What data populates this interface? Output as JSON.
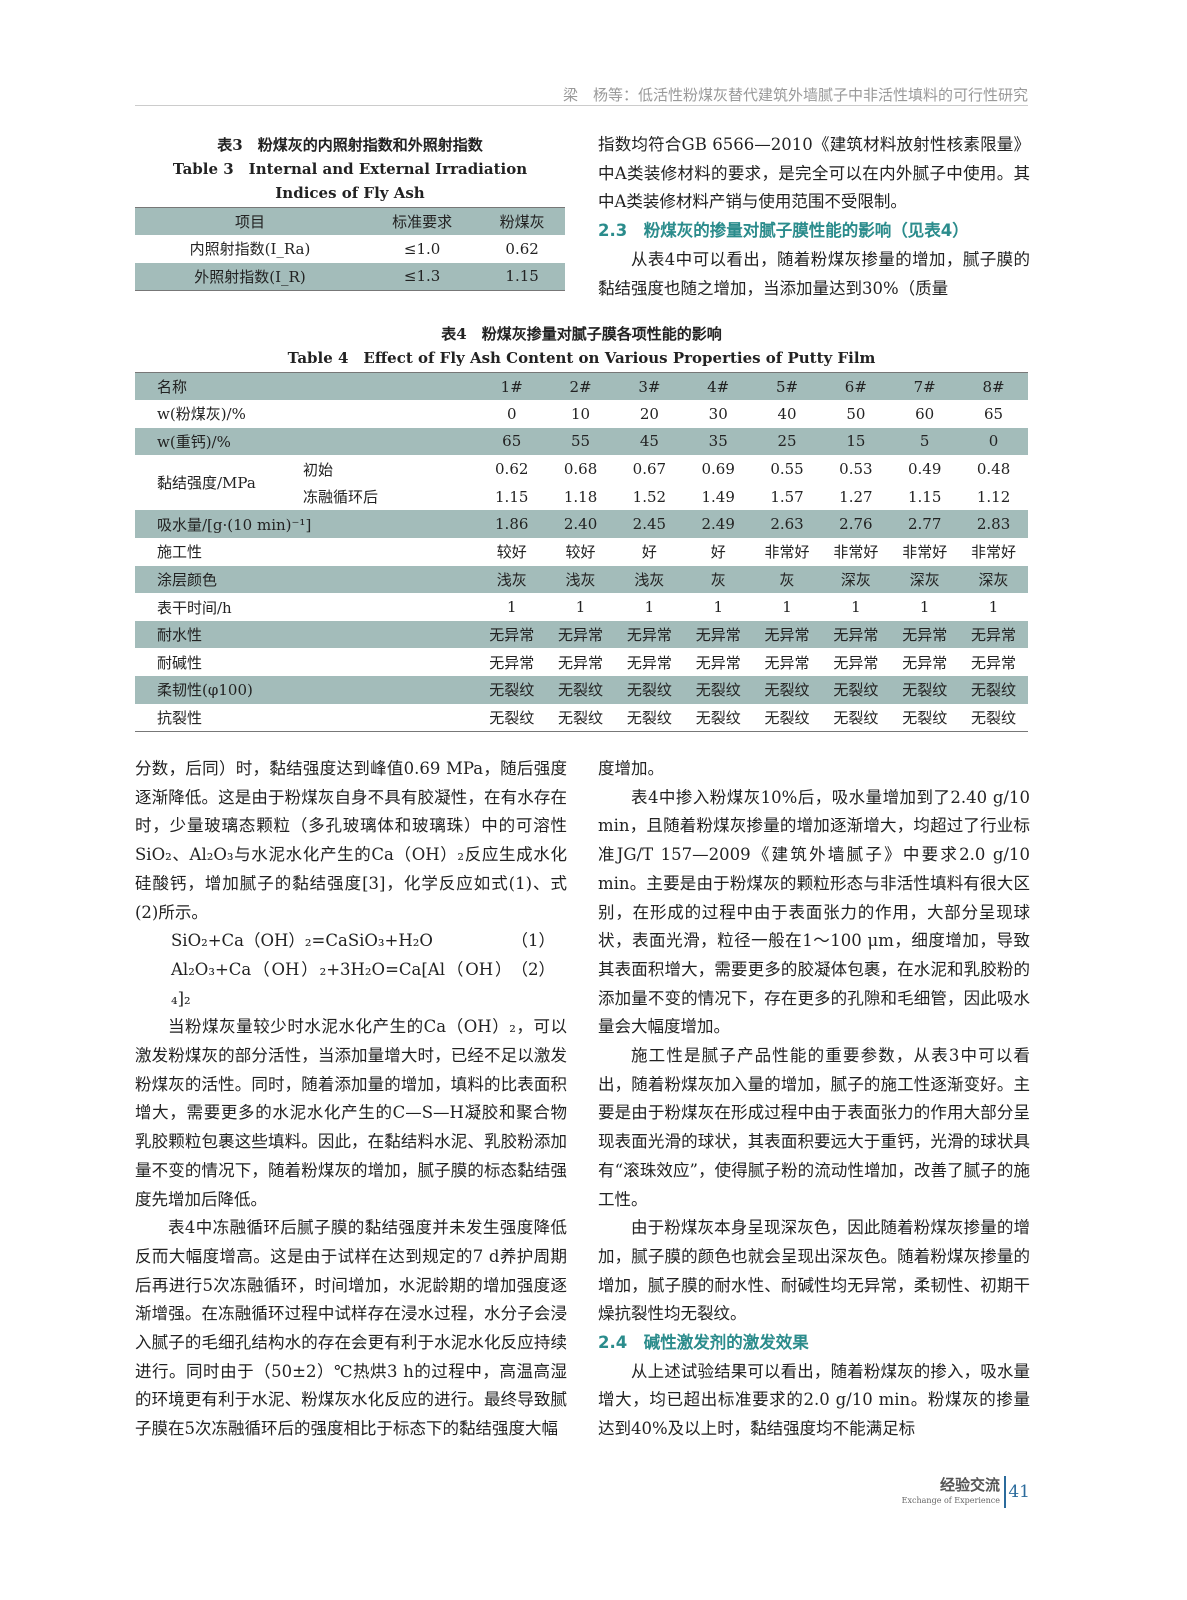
{
  "header": {
    "running_title": "梁　杨等：低活性粉煤灰替代建筑外墙腻子中非活性填料的可行性研究"
  },
  "table3": {
    "caption_cn": "表3　粉煤灰的内照射指数和外照射指数",
    "caption_en": "Table 3　Internal and External Irradiation Indices of Fly Ash",
    "headers": [
      "项目",
      "标准要求",
      "粉煤灰"
    ],
    "rows": [
      [
        "内照射指数(I_Ra)",
        "≤1.0",
        "0.62"
      ],
      [
        "外照射指数(I_R)",
        "≤1.3",
        "1.15"
      ]
    ]
  },
  "right_top": {
    "p1": "指数均符合GB 6566—2010《建筑材料放射性核素限量》中A类装修材料的要求，是完全可以在内外腻子中使用。其中A类装修材料产销与使用范围不受限制。",
    "h23": "2.3　粉煤灰的掺量对腻子膜性能的影响（见表4）",
    "p2": "从表4中可以看出，随着粉煤灰掺量的增加，腻子膜的黏结强度也随之增加，当添加量达到30%（质量"
  },
  "table4": {
    "caption_cn": "表4　粉煤灰掺量对腻子膜各项性能的影响",
    "caption_en": "Table 4　Effect of Fly Ash Content on Various Properties of Putty Film",
    "headers": [
      "名称",
      "1#",
      "2#",
      "3#",
      "4#",
      "5#",
      "6#",
      "7#",
      "8#"
    ],
    "rows": [
      {
        "label": "w(粉煤灰)/%",
        "values": [
          "0",
          "10",
          "20",
          "30",
          "40",
          "50",
          "60",
          "65"
        ]
      },
      {
        "label": "w(重钙)/%",
        "values": [
          "65",
          "55",
          "45",
          "35",
          "25",
          "15",
          "5",
          "0"
        ]
      },
      {
        "label": "黏结强度/MPa",
        "sub": "初始",
        "values": [
          "0.62",
          "0.68",
          "0.67",
          "0.69",
          "0.55",
          "0.53",
          "0.49",
          "0.48"
        ]
      },
      {
        "sub": "冻融循环后",
        "values": [
          "1.15",
          "1.18",
          "1.52",
          "1.49",
          "1.57",
          "1.27",
          "1.15",
          "1.12"
        ]
      },
      {
        "label": "吸水量/[g·(10 min)⁻¹]",
        "values": [
          "1.86",
          "2.40",
          "2.45",
          "2.49",
          "2.63",
          "2.76",
          "2.77",
          "2.83"
        ]
      },
      {
        "label": "施工性",
        "values": [
          "较好",
          "较好",
          "好",
          "好",
          "非常好",
          "非常好",
          "非常好",
          "非常好"
        ]
      },
      {
        "label": "涂层颜色",
        "values": [
          "浅灰",
          "浅灰",
          "浅灰",
          "灰",
          "灰",
          "深灰",
          "深灰",
          "深灰"
        ]
      },
      {
        "label": "表干时间/h",
        "values": [
          "1",
          "1",
          "1",
          "1",
          "1",
          "1",
          "1",
          "1"
        ]
      },
      {
        "label": "耐水性",
        "values": [
          "无异常",
          "无异常",
          "无异常",
          "无异常",
          "无异常",
          "无异常",
          "无异常",
          "无异常"
        ]
      },
      {
        "label": "耐碱性",
        "values": [
          "无异常",
          "无异常",
          "无异常",
          "无异常",
          "无异常",
          "无异常",
          "无异常",
          "无异常"
        ]
      },
      {
        "label": "柔韧性(φ100)",
        "values": [
          "无裂纹",
          "无裂纹",
          "无裂纹",
          "无裂纹",
          "无裂纹",
          "无裂纹",
          "无裂纹",
          "无裂纹"
        ]
      },
      {
        "label": "抗裂性",
        "values": [
          "无裂纹",
          "无裂纹",
          "无裂纹",
          "无裂纹",
          "无裂纹",
          "无裂纹",
          "无裂纹",
          "无裂纹"
        ]
      }
    ]
  },
  "left_body": {
    "p1": "分数，后同）时，黏结强度达到峰值0.69 MPa，随后强度逐渐降低。这是由于粉煤灰自身不具有胶凝性，在有水存在时，少量玻璃态颗粒（多孔玻璃体和玻璃珠）中的可溶性SiO₂、Al₂O₃与水泥水化产生的Ca（OH）₂反应生成水化硅酸钙，增加腻子的黏结强度[3]，化学反应如式(1)、式(2)所示。",
    "eq1": "SiO₂+Ca（OH）₂=CaSiO₃+H₂O",
    "eq1_no": "（1）",
    "eq2": "Al₂O₃+Ca（OH）₂+3H₂O=Ca[Al（OH）₄]₂",
    "eq2_no": "（2）",
    "p2": "当粉煤灰量较少时水泥水化产生的Ca（OH）₂，可以激发粉煤灰的部分活性，当添加量增大时，已经不足以激发粉煤灰的活性。同时，随着添加量的增加，填料的比表面积增大，需要更多的水泥水化产生的C—S—H凝胶和聚合物乳胶颗粒包裹这些填料。因此，在黏结料水泥、乳胶粉添加量不变的情况下，随着粉煤灰的增加，腻子膜的标态黏结强度先增加后降低。",
    "p3": "表4中冻融循环后腻子膜的黏结强度并未发生强度降低反而大幅度增高。这是由于试样在达到规定的7 d养护周期后再进行5次冻融循环，时间增加，水泥龄期的增加强度逐渐增强。在冻融循环过程中试样存在浸水过程，水分子会浸入腻子的毛细孔结构水的存在会更有利于水泥水化反应持续进行。同时由于（50±2）℃热烘3 h的过程中，高温高湿的环境更有利于水泥、粉煤灰水化反应的进行。最终导致腻子膜在5次冻融循环后的强度相比于标态下的黏结强度大幅"
  },
  "right_body": {
    "p0": "度增加。",
    "p1": "表4中掺入粉煤灰10%后，吸水量增加到了2.40 g/10 min，且随着粉煤灰掺量的增加逐渐增大，均超过了行业标准JG/T 157—2009《建筑外墙腻子》中要求2.0 g/10 min。主要是由于粉煤灰的颗粒形态与非活性填料有很大区别，在形成的过程中由于表面张力的作用，大部分呈现球状，表面光滑，粒径一般在1～100 μm，细度增加，导致其表面积增大，需要更多的胶凝体包裹，在水泥和乳胶粉的添加量不变的情况下，存在更多的孔隙和毛细管，因此吸水量会大幅度增加。",
    "p2": "施工性是腻子产品性能的重要参数，从表3中可以看出，随着粉煤灰加入量的增加，腻子的施工性逐渐变好。主要是由于粉煤灰在形成过程中由于表面张力的作用大部分呈现表面光滑的球状，其表面积要远大于重钙，光滑的球状具有“滚珠效应”，使得腻子粉的流动性增加，改善了腻子的施工性。",
    "p3": "由于粉煤灰本身呈现深灰色，因此随着粉煤灰掺量的增加，腻子膜的颜色也就会呈现出深灰色。随着粉煤灰掺量的增加，腻子膜的耐水性、耐碱性均无异常，柔韧性、初期干燥抗裂性均无裂纹。",
    "h24": "2.4　碱性激发剂的激发效果",
    "p4": "从上述试验结果可以看出，随着粉煤灰的掺入，吸水量增大，均已超出标准要求的2.0 g/10 min。粉煤灰的掺量达到40%及以上时，黏结强度均不能满足标"
  },
  "footer": {
    "section_cn": "经验交流",
    "section_en": "Exchange of Experience",
    "page": "41"
  },
  "colors": {
    "table_shade": "#a3bcba",
    "heading": "#2b8c8c",
    "page_number": "#2b6b9c"
  }
}
